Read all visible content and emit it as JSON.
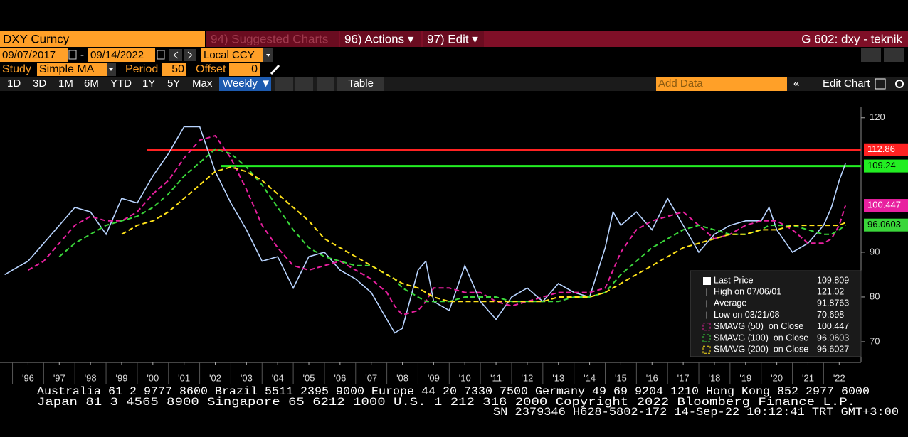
{
  "header": {
    "ticker": "DXY Curncy",
    "menu": [
      "94) Suggested Charts",
      "96) Actions ▾",
      "97) Edit ▾"
    ],
    "page": "G 602: dxy - teknik"
  },
  "range": {
    "start_date": "09/07/2017",
    "separator": "-",
    "end_date": "09/14/2022",
    "currency": "Local CCY"
  },
  "study": {
    "study_label": "Study",
    "study": "Simple MA",
    "period_label": "Period",
    "period": 50,
    "offset_label": "Offset",
    "offset": 0
  },
  "toolbar": {
    "buttons": [
      "1D",
      "3D",
      "1M",
      "6M",
      "YTD",
      "1Y",
      "5Y",
      "Max"
    ],
    "interval": "Weekly ▼",
    "table": "Table",
    "add_data": "Add Data",
    "edit_chart": "Edit Chart"
  },
  "chart_data": {
    "type": "line",
    "x": [
      1995.75,
      1996,
      1996.5,
      1997,
      1997.5,
      1998,
      1998.5,
      1999,
      1999.5,
      2000,
      2000.5,
      2001,
      2001.5,
      2002,
      2002.5,
      2003,
      2003.5,
      2004,
      2004.5,
      2005,
      2005.5,
      2006,
      2006.5,
      2007,
      2007.5,
      2008,
      2008.25,
      2008.5,
      2009,
      2009.25,
      2009.5,
      2010,
      2010.5,
      2011,
      2011.5,
      2012,
      2012.5,
      2013,
      2013.5,
      2014,
      2014.5,
      2015,
      2015.25,
      2015.5,
      2016,
      2016.5,
      2017,
      2017.5,
      2018,
      2018.5,
      2019,
      2019.5,
      2020,
      2020.25,
      2020.5,
      2021,
      2021.5,
      2022,
      2022.25,
      2022.5,
      2022.7
    ],
    "series": [
      {
        "name": "Last Price",
        "color": "#b8d4ff",
        "dash": false,
        "last_value": 109.809,
        "values": [
          85,
          86,
          88,
          92,
          96,
          100,
          99,
          94,
          102,
          101,
          107,
          112,
          118,
          118,
          108,
          101,
          95,
          88,
          89,
          82,
          89,
          90,
          86,
          84,
          81,
          75,
          72,
          73,
          86,
          88,
          79,
          77,
          87,
          79,
          75,
          80,
          82,
          79,
          83,
          81,
          80,
          91,
          99,
          96,
          99,
          95,
          102,
          96,
          90,
          94,
          96,
          97,
          97,
          100,
          95,
          90,
          92,
          96,
          100,
          106,
          109.8
        ]
      },
      {
        "name": "SMAVG (50)  on Close",
        "color": "#e8209f",
        "dash": true,
        "last_value": 100.447,
        "values": [
          null,
          null,
          86,
          88,
          92,
          96,
          98,
          97,
          97,
          99,
          103,
          106,
          111,
          115,
          116,
          111,
          104,
          96,
          91,
          87,
          86,
          87,
          88,
          86,
          84,
          81,
          78,
          76,
          77,
          79,
          82,
          82,
          81,
          81,
          79,
          78,
          79,
          80,
          81,
          81,
          81,
          82,
          86,
          90,
          95,
          97,
          98,
          99,
          96,
          93,
          94,
          96,
          97,
          97,
          97,
          95,
          92,
          92,
          93,
          96,
          100.4
        ]
      },
      {
        "name": "SMAVG (100)  on Close",
        "color": "#3ad63a",
        "dash": true,
        "last_value": 96.0603,
        "values": [
          null,
          null,
          null,
          null,
          89,
          92,
          94,
          96,
          97,
          98,
          100,
          103,
          107,
          110,
          113,
          112,
          109,
          105,
          100,
          95,
          91,
          89,
          88,
          87,
          87,
          85,
          84,
          82,
          80,
          79,
          79,
          79,
          80,
          80,
          80,
          79,
          79,
          79,
          79,
          80,
          80,
          81,
          83,
          85,
          88,
          91,
          93,
          95,
          96,
          95,
          94,
          94,
          95,
          96,
          96,
          96,
          95,
          94,
          94,
          95,
          96.06
        ]
      },
      {
        "name": "SMAVG (200)  on Close",
        "color": "#ffe21a",
        "dash": true,
        "last_value": 96.6027,
        "values": [
          null,
          null,
          null,
          null,
          null,
          null,
          null,
          null,
          94,
          96,
          97,
          99,
          102,
          105,
          108,
          109,
          108,
          106,
          103,
          100,
          97,
          93,
          91,
          89,
          87,
          85,
          84,
          83,
          82,
          81,
          80,
          79,
          79,
          79,
          79,
          79,
          79,
          79,
          80,
          80,
          80,
          81,
          82,
          83,
          85,
          87,
          89,
          91,
          92,
          93,
          94,
          94,
          95,
          95,
          95,
          96,
          96,
          96,
          96,
          96,
          96.6
        ]
      }
    ],
    "hlines": [
      {
        "value": 112.86,
        "color": "#ff2222"
      },
      {
        "value": 109.24,
        "color": "#22ee22"
      }
    ],
    "stats": [
      {
        "label": "High on 07/06/01",
        "value": 121.02
      },
      {
        "label": "Average",
        "value": 91.8763
      },
      {
        "label": "Low on 03/21/08",
        "value": 70.698
      }
    ],
    "xlim": [
      1995.6,
      2023.2
    ],
    "xticks": [
      {
        "value": 1996.5,
        "label": "'96"
      },
      {
        "value": 1997.5,
        "label": "'97"
      },
      {
        "value": 1998.5,
        "label": "'98"
      },
      {
        "value": 1999.5,
        "label": "'99"
      },
      {
        "value": 2000.5,
        "label": "'00"
      },
      {
        "value": 2001.5,
        "label": "'01"
      },
      {
        "value": 2002.5,
        "label": "'02"
      },
      {
        "value": 2003.5,
        "label": "'03"
      },
      {
        "value": 2004.5,
        "label": "'04"
      },
      {
        "value": 2005.5,
        "label": "'05"
      },
      {
        "value": 2006.5,
        "label": "'06"
      },
      {
        "value": 2007.5,
        "label": "'07"
      },
      {
        "value": 2008.5,
        "label": "'08"
      },
      {
        "value": 2009.5,
        "label": "'09"
      },
      {
        "value": 2010.5,
        "label": "'10"
      },
      {
        "value": 2011.5,
        "label": "'11"
      },
      {
        "value": 2012.5,
        "label": "'12"
      },
      {
        "value": 2013.5,
        "label": "'13"
      },
      {
        "value": 2014.5,
        "label": "'14"
      },
      {
        "value": 2015.5,
        "label": "'15"
      },
      {
        "value": 2016.5,
        "label": "'16"
      },
      {
        "value": 2017.5,
        "label": "'17"
      },
      {
        "value": 2018.5,
        "label": "'18"
      },
      {
        "value": 2019.5,
        "label": "'19"
      },
      {
        "value": 2020.5,
        "label": "'20"
      },
      {
        "value": 2021.5,
        "label": "'21"
      },
      {
        "value": 2022.5,
        "label": "'22"
      }
    ],
    "ylim": [
      65.4,
      122.5
    ],
    "yticks": [
      70,
      80,
      90,
      120
    ],
    "grid": false
  },
  "footer": {
    "lines": [
      "Australia 61 2 9777 8600 Brazil 5511 2395 9000 Europe 44 20 7330 7500 Germany 49 69 9204 1210 Hong Kong 852 2977 6000",
      "Japan 81 3 4565 8900       Singapore 65 6212 1000       U.S. 1 212 318 2000       Copyright 2022 Bloomberg Finance L.P.",
      "SN 2379346 H628-5802-172 14-Sep-22 10:12:41 TRT  GMT+3:00"
    ]
  }
}
